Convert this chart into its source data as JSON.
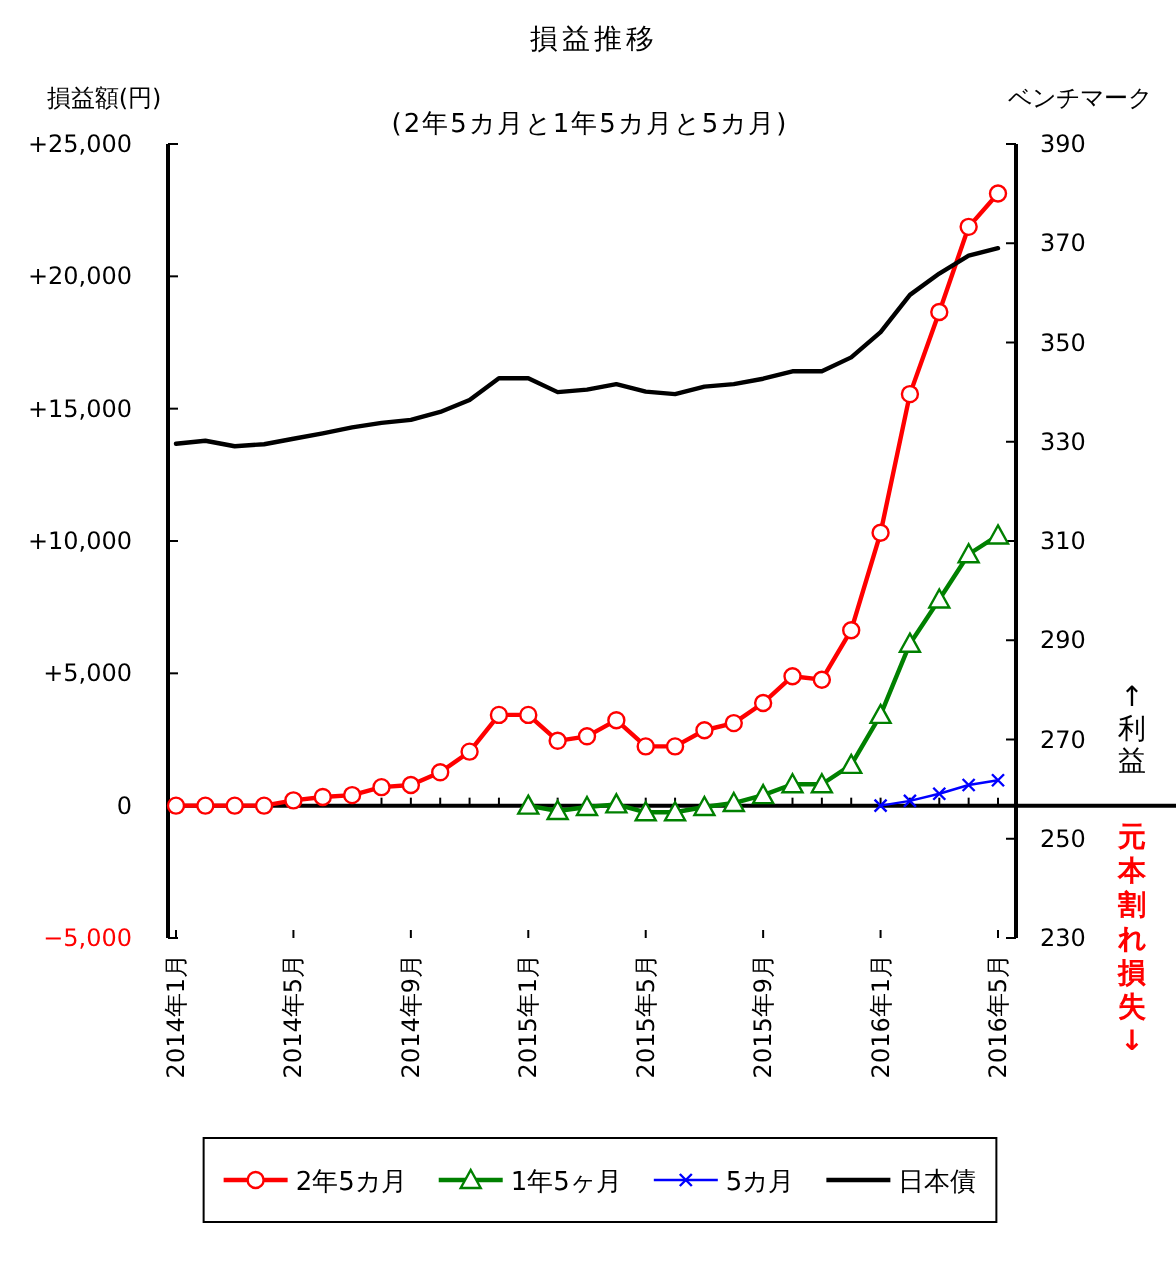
{
  "chart_data": {
    "type": "line",
    "title": "損益推移",
    "subtitle": "(2年5カ月と1年5カ月と5カ月)",
    "ylabel": "損益額(円)",
    "y2label": "ベンチマーク",
    "annotations": [
      "↑利益",
      "元本割れ損失↓"
    ],
    "categories": [
      "2014年1月",
      null,
      null,
      null,
      "2014年5月",
      null,
      null,
      null,
      "2014年9月",
      null,
      null,
      null,
      "2015年1月",
      null,
      null,
      null,
      "2015年5月",
      null,
      null,
      null,
      "2015年9月",
      null,
      null,
      null,
      "2016年1月",
      null,
      null,
      null,
      "2016年5月"
    ],
    "ylim": [
      -5000,
      25000
    ],
    "yticks": [
      {
        "value": 25000,
        "label": "+25,000"
      },
      {
        "value": 20000,
        "label": "+20,000"
      },
      {
        "value": 15000,
        "label": "+15,000"
      },
      {
        "value": 10000,
        "label": "+10,000"
      },
      {
        "value": 5000,
        "label": "+5,000"
      },
      {
        "value": 0,
        "label": "0"
      },
      {
        "value": -5000,
        "label": "−5,000"
      }
    ],
    "y2lim": [
      230,
      390
    ],
    "y2ticks": [
      230,
      250,
      270,
      290,
      310,
      330,
      350,
      370,
      390
    ],
    "legend": "bottom",
    "series": [
      {
        "name": "2年5カ月",
        "color": "#ff0000",
        "marker": "circle",
        "values": [
          0,
          0,
          0,
          0,
          200,
          330,
          400,
          700,
          780,
          1260,
          2040,
          3430,
          3430,
          2450,
          2620,
          3230,
          2240,
          2240,
          2850,
          3120,
          3880,
          4890,
          4760,
          6630,
          10310,
          15550,
          18650,
          21870,
          23130
        ]
      },
      {
        "name": "1年5ヶ月",
        "color": "#008000",
        "marker": "triangle",
        "values": [
          null,
          null,
          null,
          null,
          null,
          null,
          null,
          null,
          null,
          null,
          null,
          null,
          0,
          -200,
          -50,
          50,
          -250,
          -250,
          -50,
          100,
          400,
          810,
          810,
          1540,
          3430,
          6120,
          7790,
          9500,
          10210
        ]
      },
      {
        "name": "5カ月",
        "color": "#0000ff",
        "marker": "cross",
        "values": [
          null,
          null,
          null,
          null,
          null,
          null,
          null,
          null,
          null,
          null,
          null,
          null,
          null,
          null,
          null,
          null,
          null,
          null,
          null,
          null,
          null,
          null,
          null,
          null,
          0,
          180,
          450,
          780,
          960
        ]
      },
      {
        "name": "日本債",
        "color": "#000000",
        "marker": "none",
        "axis": "y2",
        "values": [
          329.6,
          330.2,
          329.1,
          329.5,
          330.6,
          331.7,
          332.9,
          333.8,
          334.4,
          336.0,
          338.4,
          342.8,
          342.8,
          340.0,
          340.5,
          341.6,
          340.1,
          339.6,
          341.1,
          341.6,
          342.7,
          344.2,
          344.2,
          347.0,
          352.1,
          359.6,
          363.9,
          367.5,
          369.0
        ]
      }
    ]
  }
}
